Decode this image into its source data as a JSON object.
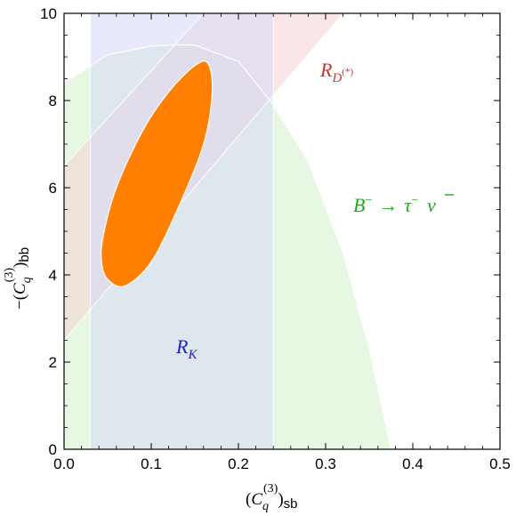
{
  "chart_data": {
    "type": "area",
    "title": "",
    "xlabel": {
      "prefix": "(",
      "c": "C",
      "sub": "q",
      "sup": "(3)",
      "suffix": ")",
      "flavor": "sb"
    },
    "ylabel": {
      "prefix": "−(",
      "c": "C",
      "sub": "q",
      "sup": "(3)",
      "suffix": ")",
      "flavor": "bb"
    },
    "xlim": [
      0,
      0.5
    ],
    "ylim": [
      0,
      10
    ],
    "xticks": [
      "0.0",
      "0.1",
      "0.2",
      "0.3",
      "0.4",
      "0.5"
    ],
    "yticks": [
      "0",
      "2",
      "4",
      "6",
      "8",
      "10"
    ],
    "grid": false,
    "regions": {
      "RK": {
        "label": "R",
        "label_sub": "K",
        "x_min": 0.03,
        "x_max": 0.24,
        "color": "#d6d8f7"
      },
      "RD": {
        "label": "R",
        "label_sub": "D",
        "label_sup": "(*)",
        "band_lower": {
          "x": [
            0.0,
            0.32
          ],
          "y": [
            2.5,
            10.0
          ]
        },
        "band_upper": {
          "x": [
            0.0,
            0.16
          ],
          "y": [
            6.5,
            10.0
          ]
        },
        "color": "#f7d6d6"
      },
      "Btaunu": {
        "label_lhs": "B",
        "label_lhs_sup": "−",
        "label_arrow": "→",
        "label_rhs1": "τ",
        "label_rhs1_sup": "−",
        "label_rhs2": "ν",
        "boundary": {
          "x": [
            0.0,
            0.05,
            0.1,
            0.13,
            0.15,
            0.2,
            0.24,
            0.28,
            0.32,
            0.35,
            0.375
          ],
          "y": [
            8.4,
            9.05,
            9.25,
            9.28,
            9.27,
            8.9,
            7.9,
            6.6,
            4.5,
            2.3,
            0.0
          ]
        },
        "color": "#e2f7dc"
      }
    },
    "ellipse": {
      "center": [
        0.11,
        6.7
      ],
      "points_x": [
        0.05,
        0.07,
        0.1,
        0.13,
        0.16,
        0.17,
        0.165,
        0.15,
        0.12,
        0.09,
        0.06,
        0.045,
        0.043
      ],
      "points_y": [
        3.9,
        3.75,
        4.3,
        5.5,
        7.0,
        8.2,
        8.85,
        8.8,
        8.2,
        7.3,
        6.0,
        4.9,
        4.3
      ],
      "color": "#ff7f00"
    }
  }
}
